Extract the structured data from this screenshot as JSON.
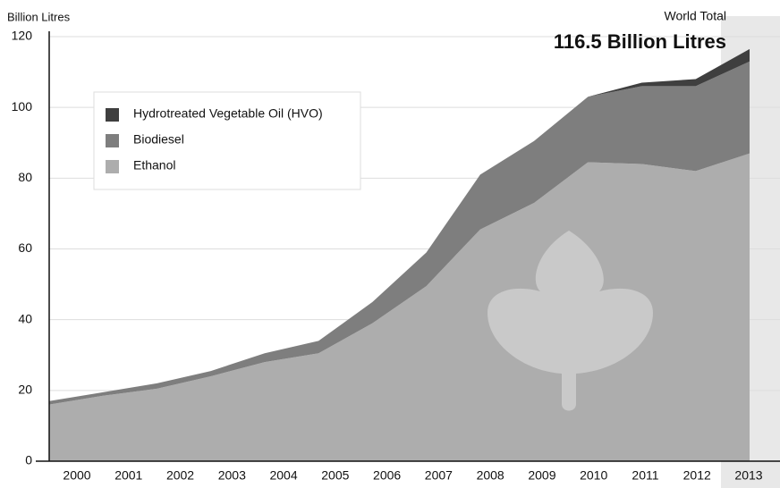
{
  "chart_data": {
    "type": "stacked_area",
    "y_axis_label": "Billion Litres",
    "annotation_label": "World Total",
    "annotation_value": "116.5 Billion Litres",
    "categories": [
      "2000",
      "2001",
      "2002",
      "2003",
      "2004",
      "2005",
      "2006",
      "2007",
      "2008",
      "2009",
      "2010",
      "2011",
      "2012",
      "2013"
    ],
    "series": [
      {
        "name": "Ethanol",
        "color": "#adadad",
        "values": [
          16,
          18.5,
          20.5,
          24,
          28,
          30.5,
          39,
          49.5,
          65.5,
          73,
          84.5,
          84,
          82,
          87
        ]
      },
      {
        "name": "Biodiesel",
        "color": "#7e7e7e",
        "values": [
          1,
          1,
          1.5,
          1.5,
          2.5,
          3.5,
          6,
          9.5,
          15.5,
          17.5,
          18.5,
          22,
          24,
          26
        ]
      },
      {
        "name": "Hydrotreated Vegetable Oil (HVO)",
        "color": "#3f3f3f",
        "values": [
          0,
          0,
          0,
          0,
          0,
          0,
          0,
          0,
          0,
          0,
          0,
          1,
          2,
          3.5
        ]
      }
    ],
    "ylim": [
      0,
      120
    ],
    "yticks": [
      0,
      20,
      40,
      60,
      80,
      100,
      120
    ],
    "grid": true
  }
}
